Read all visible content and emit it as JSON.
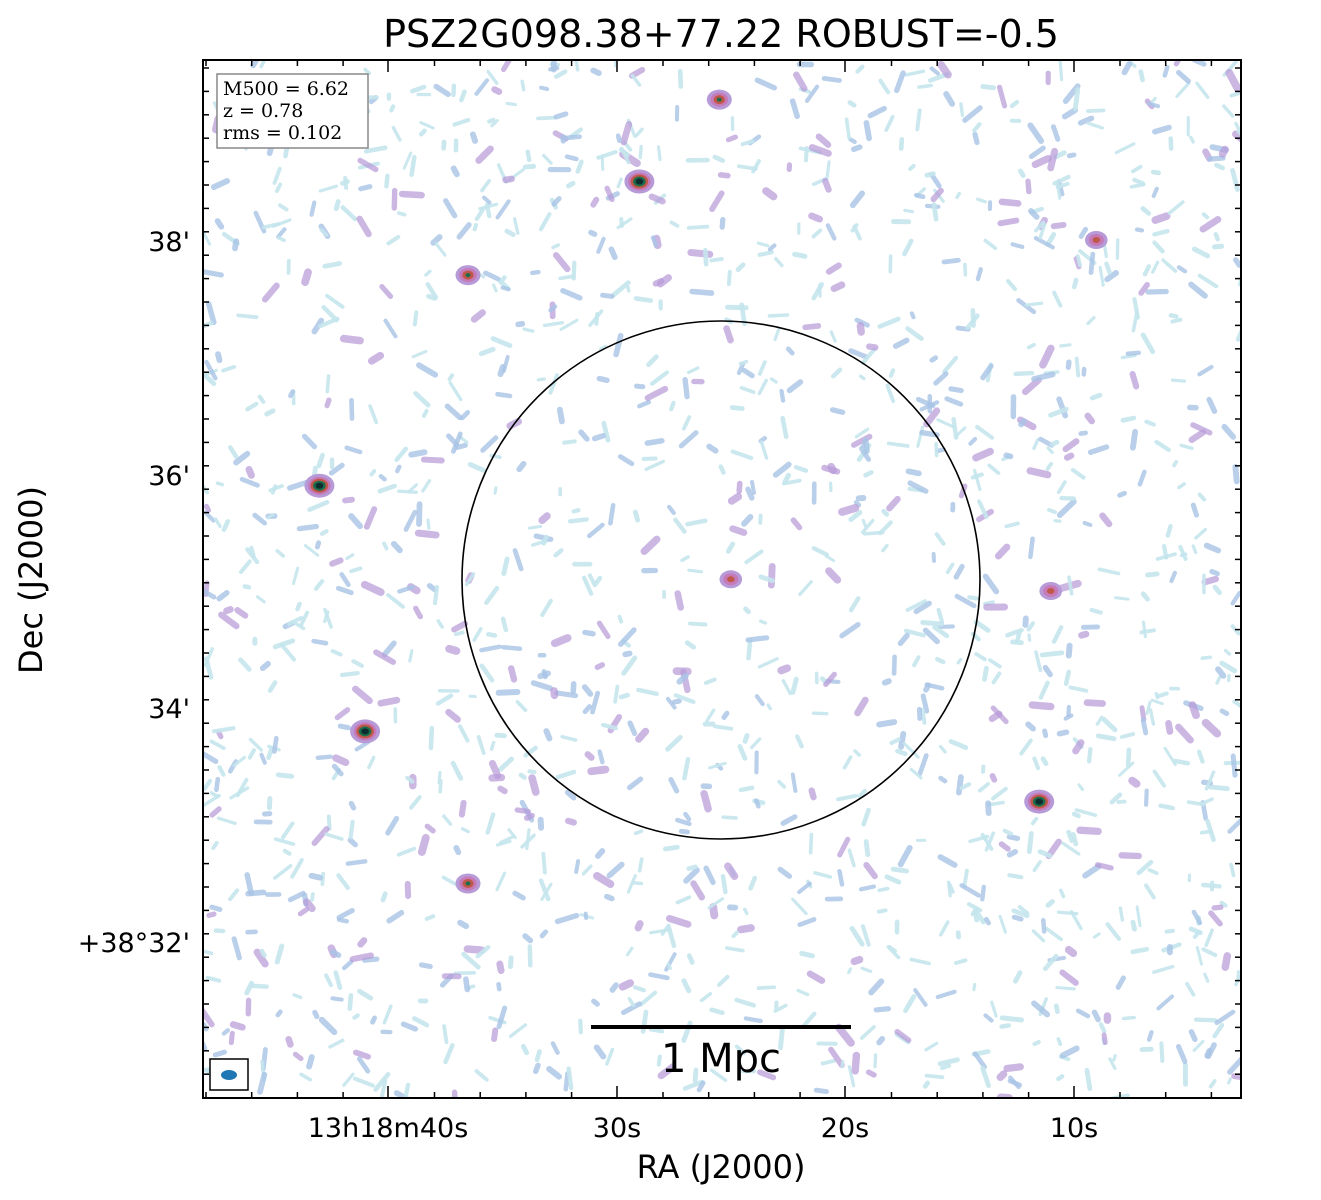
{
  "chart_data": {
    "type": "heatmap",
    "title": "PSZ2G098.38+77.22 ROBUST=-0.5",
    "xlabel": "RA (J2000)",
    "ylabel": "Dec (J2000)",
    "x_ticks": [
      "13h18m40s",
      "30s",
      "20s",
      "10s"
    ],
    "y_ticks": [
      "+38°32'",
      "34'",
      "36'",
      "38'"
    ],
    "info_box": [
      "M500 = 6.62",
      "z = 0.78",
      "rms = 0.102"
    ],
    "scalebar_label": "1 Mpc",
    "colormap": [
      "#c6e6ee",
      "#a8c4e6",
      "#b79ad8",
      "#c77ab8",
      "#c0584a",
      "#1c6b4a",
      "#0b2d2e"
    ],
    "beam_color": "#1f77b4",
    "circle_color": "#000000",
    "grid": false,
    "sources": [
      {
        "ra": "13h18m43.0s",
        "dec": "+38°35.9'",
        "peak": "high"
      },
      {
        "ra": "13h18m41.0s",
        "dec": "+38°33.8'",
        "peak": "high"
      },
      {
        "ra": "13h18m29.0s",
        "dec": "+38°38.5'",
        "peak": "high"
      },
      {
        "ra": "13h18m36.5s",
        "dec": "+38°37.7'",
        "peak": "medium"
      },
      {
        "ra": "13h18m36.5s",
        "dec": "+38°32.5'",
        "peak": "medium"
      },
      {
        "ra": "13h18m11.5s",
        "dec": "+38°33.2'",
        "peak": "high"
      },
      {
        "ra": "13h18m25.5s",
        "dec": "+38°39.2'",
        "peak": "medium"
      },
      {
        "ra": "13h18m25.0s",
        "dec": "+38°35.1'",
        "peak": "low"
      },
      {
        "ra": "13h18m09.0s",
        "dec": "+38°38.0'",
        "peak": "low"
      },
      {
        "ra": "13h18m11.0s",
        "dec": "+38°35.0'",
        "peak": "low"
      }
    ]
  }
}
